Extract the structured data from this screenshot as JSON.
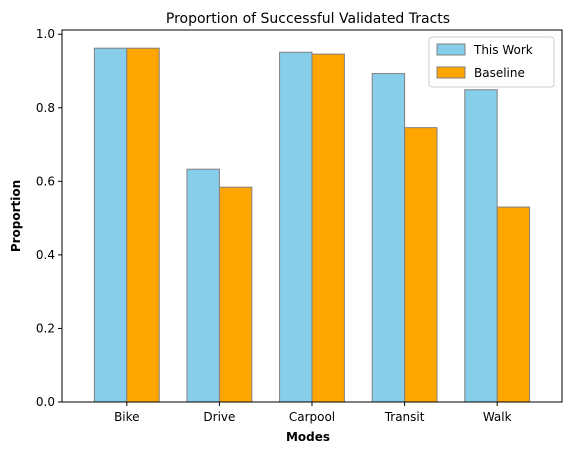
{
  "chart_data": {
    "type": "bar",
    "title": "Proportion of Successful Validated Tracts",
    "xlabel": "Modes",
    "ylabel": "Proportion",
    "categories": [
      "Bike",
      "Drive",
      "Carpool",
      "Transit",
      "Walk"
    ],
    "series": [
      {
        "name": "This Work",
        "color": "#87ceeb",
        "values": [
          0.962,
          0.633,
          0.951,
          0.893,
          0.849
        ]
      },
      {
        "name": "Baseline",
        "color": "#ffa500",
        "values": [
          0.962,
          0.584,
          0.946,
          0.746,
          0.53
        ]
      }
    ],
    "ylim": [
      0,
      1.0115
    ],
    "yticks": [
      "0.0",
      "0.2",
      "0.4",
      "0.6",
      "0.8",
      "1.0"
    ],
    "grid": false,
    "legend_position": "top-right",
    "bar_edge_color": "#808080"
  }
}
